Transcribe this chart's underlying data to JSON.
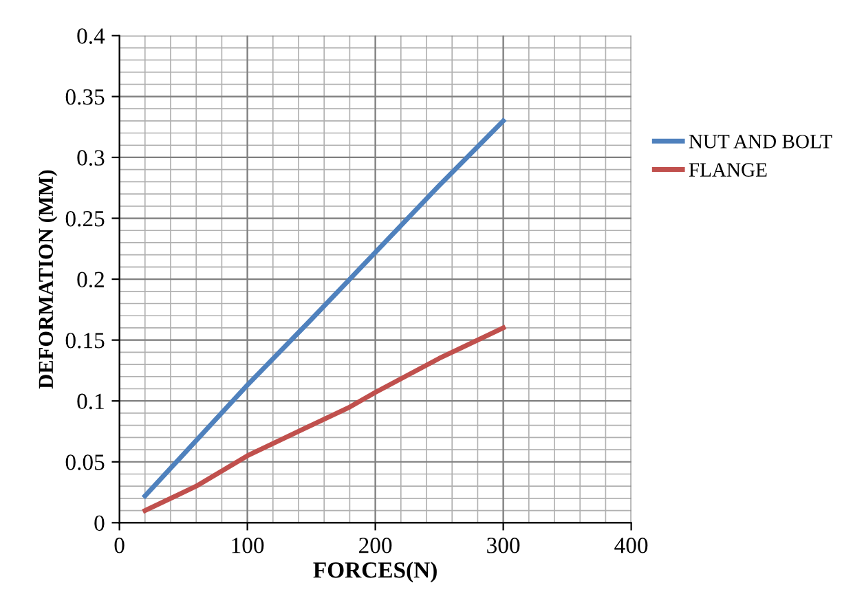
{
  "chart_data": {
    "type": "line",
    "xlabel": "FORCES(N)",
    "ylabel": "DEFORMATION (MM)",
    "series": [
      {
        "name": "NUT AND BOLT",
        "color": "#4f81bd",
        "x": [
          20,
          100,
          150,
          200,
          250,
          300
        ],
        "values": [
          0.022,
          0.113,
          0.167,
          0.222,
          0.277,
          0.33
        ]
      },
      {
        "name": "FLANGE",
        "color": "#c0504d",
        "x": [
          20,
          60,
          100,
          140,
          180,
          200,
          250,
          300
        ],
        "values": [
          0.01,
          0.03,
          0.055,
          0.075,
          0.095,
          0.107,
          0.135,
          0.16
        ]
      }
    ],
    "xlim": [
      0,
      400
    ],
    "xticks": [
      0,
      100,
      200,
      300,
      400
    ],
    "ylim": [
      0,
      0.4
    ],
    "yticks": [
      {
        "value": 0,
        "label": "0"
      },
      0.05,
      0.1,
      0.15,
      0.2,
      0.25,
      0.3,
      0.35,
      0.4
    ],
    "grid": true,
    "legend": "right",
    "marker": "none",
    "line_style": "solid"
  }
}
